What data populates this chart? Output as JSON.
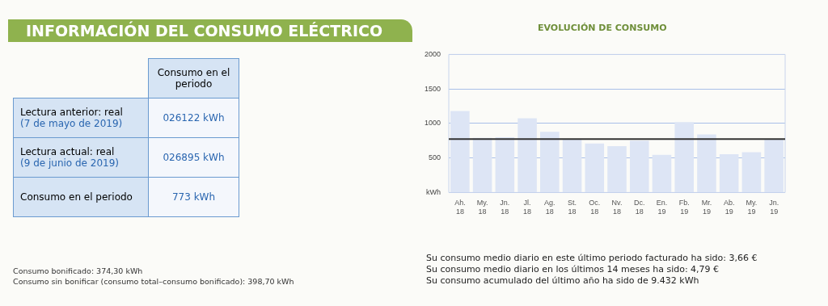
{
  "chart_data": [
    {
      "type": "other",
      "title": "INFORMACIÓN DEL CONSUMO ELÉCTRICO",
      "annotations": [
        "Consumo en el periodo",
        "Lectura anterior: real",
        "(7 de mayo de 2019)",
        "026122 kWh",
        "Lectura actual: real",
        "(9 de junio de 2019)",
        "026895 kWh",
        "Consumo en el periodo",
        "773 kWh",
        "Consumo bonificado: 374,30 kWh",
        "Consumo sin bonificar (consumo total–consumo bonificado): 398,70 kWh"
      ]
    },
    {
      "type": "bar",
      "title": "EVOLUCIÓN DE CONSUMO",
      "categories": [
        "Ah. 18",
        "My. 18",
        "Jn. 18",
        "Jl. 18",
        "Ag. 18",
        "St. 18",
        "Oc. 18",
        "Nv. 18",
        "Dc. 18",
        "En. 19",
        "Fb. 19",
        "Mr. 19",
        "Ab. 19",
        "My. 19",
        "Jn. 19"
      ],
      "values": [
        1180,
        790,
        800,
        1075,
        880,
        765,
        710,
        670,
        750,
        545,
        1020,
        840,
        555,
        585,
        770
      ],
      "color": "#dde5f5",
      "ylim": [
        0,
        2000
      ],
      "yticks": [
        {
          "value": 0,
          "label": "kWh"
        },
        500,
        1000,
        1500,
        2000
      ],
      "grid": "y",
      "ref_lines": [
        {
          "axis": "y",
          "value": 775,
          "label": null,
          "color": "#333333"
        }
      ],
      "annotations": [
        "Su consumo medio diario en este último periodo facturado ha sido: 3,66 €",
        "Su consumo medio diario en los últimos 14 meses ha sido: 4,79 €",
        "Su consumo acumulado del último año ha sido de 9.432 kWh"
      ]
    }
  ]
}
